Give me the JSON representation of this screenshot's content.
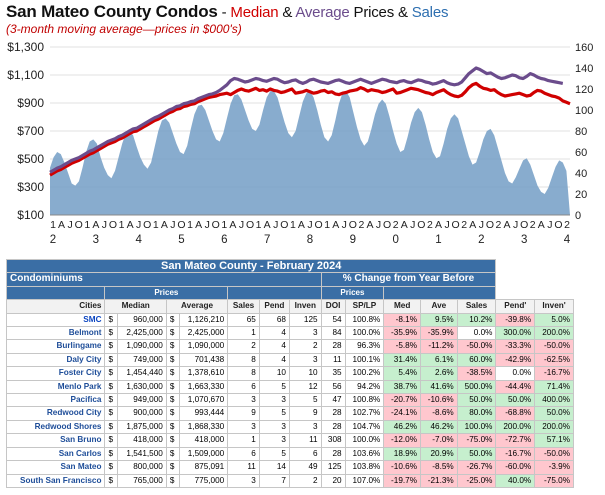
{
  "header": {
    "title_main": "San Mateo County Condos",
    "title_dash": " - ",
    "title_median": "Median",
    "title_amp1": " & ",
    "title_average": "Average",
    "title_prices": " Prices & ",
    "title_sales": "Sales",
    "subtitle": "(3-month moving average—prices in $000's)"
  },
  "colors": {
    "median": "#d00000",
    "average": "#6b4c8c",
    "sales": "#7ba3c9",
    "header_blue": "#3a6ea5",
    "positive": "#c6efce",
    "negative": "#ffc7ce"
  },
  "chart_data": {
    "type": "line",
    "y_left_ticks": [
      "$100",
      "$300",
      "$500",
      "$700",
      "$900",
      "$1,100",
      "$1,300"
    ],
    "y_left_range": [
      100,
      1300
    ],
    "y_right_ticks": [
      "0",
      "20",
      "40",
      "60",
      "80",
      "100",
      "120",
      "140",
      "160"
    ],
    "y_right_range": [
      0,
      160
    ],
    "x_month_labels": [
      "1",
      "A",
      "J",
      "O",
      "1",
      "A",
      "J",
      "O",
      "1",
      "A",
      "J",
      "O",
      "1",
      "A",
      "J",
      "O",
      "1",
      "A",
      "J",
      "O",
      "1",
      "A",
      "J",
      "O",
      "1",
      "A",
      "J",
      "O",
      "1",
      "A",
      "J",
      "O",
      "1",
      "A",
      "J",
      "O",
      "2",
      "A",
      "J",
      "O",
      "2",
      "A",
      "J",
      "O",
      "2",
      "A",
      "J",
      "O",
      "2",
      "A",
      "J",
      "O",
      "2",
      "A",
      "J",
      "O",
      "2",
      "A",
      "J",
      "O",
      "2"
    ],
    "x_year_labels": [
      "2",
      "3",
      "4",
      "5",
      "6",
      "7",
      "8",
      "9",
      "0",
      "1",
      "2",
      "3",
      "4"
    ],
    "series": [
      {
        "name": "Median",
        "color": "#d00000",
        "values": [
          385,
          400,
          415,
          425,
          440,
          455,
          470,
          480,
          490,
          505,
          520,
          535,
          545,
          560,
          575,
          590,
          605,
          615,
          625,
          640,
          650,
          665,
          680,
          695,
          700,
          715,
          730,
          745,
          760,
          775,
          785,
          800,
          815,
          830,
          840,
          855,
          860,
          875,
          880,
          890,
          895,
          910,
          920,
          930,
          940,
          945,
          950,
          960,
          965,
          970,
          960,
          975,
          990,
          1000,
          990,
          985,
          995,
          1005,
          990,
          995,
          985,
          1000,
          990,
          985,
          975,
          980,
          990,
          1000,
          970,
          975,
          980,
          990,
          980,
          970,
          975,
          985,
          990,
          975,
          980,
          965,
          960,
          970,
          975,
          985,
          990,
          995,
          1010,
          1000,
          985,
          995,
          990,
          985,
          975,
          980,
          990,
          1000,
          970,
          975,
          985,
          995,
          1005,
          1000,
          995,
          985,
          975,
          970,
          960,
          975,
          985,
          995,
          975,
          960,
          950,
          945,
          955,
          980,
          1010,
          1030,
          1040,
          1020,
          1005,
          1000,
          990,
          995,
          975,
          960,
          950,
          955,
          960,
          965,
          970,
          960,
          950,
          955,
          975,
          990,
          985,
          970,
          960,
          950,
          945,
          935,
          915,
          905,
          895
        ]
      },
      {
        "name": "Average",
        "color": "#6b4c8c",
        "values": [
          405,
          420,
          435,
          445,
          460,
          475,
          490,
          500,
          510,
          525,
          540,
          555,
          565,
          580,
          595,
          610,
          625,
          635,
          645,
          660,
          670,
          685,
          700,
          715,
          720,
          735,
          750,
          765,
          780,
          795,
          805,
          820,
          835,
          850,
          860,
          875,
          880,
          895,
          900,
          910,
          915,
          930,
          940,
          950,
          960,
          965,
          975,
          990,
          1010,
          1030,
          1060,
          1075,
          1070,
          1060,
          1050,
          1055,
          1065,
          1075,
          1070,
          1060,
          1055,
          1065,
          1075,
          1070,
          1055,
          1045,
          1050,
          1060,
          1065,
          1050,
          1040,
          1050,
          1065,
          1070,
          1060,
          1050,
          1045,
          1040,
          1050,
          1060,
          1065,
          1055,
          1045,
          1040,
          1050,
          1060,
          1070,
          1060,
          1050,
          1040,
          1050,
          1060,
          1070,
          1065,
          1055,
          1050,
          1045,
          1055,
          1060,
          1050,
          1045,
          1055,
          1065,
          1060,
          1050,
          1045,
          1035,
          1040,
          1050,
          1060,
          1045,
          1035,
          1030,
          1035,
          1050,
          1080,
          1110,
          1130,
          1150,
          1140,
          1125,
          1110,
          1115,
          1100,
          1085,
          1075,
          1080,
          1090,
          1100,
          1095,
          1080,
          1075,
          1090,
          1110,
          1100,
          1085,
          1075,
          1070,
          1060,
          1055,
          1050,
          1045,
          1040
        ]
      },
      {
        "name": "Sales",
        "color": "#7ba3c9",
        "axis": "right",
        "values": [
          45,
          55,
          60,
          58,
          50,
          40,
          30,
          28,
          32,
          45,
          60,
          70,
          72,
          68,
          55,
          45,
          38,
          35,
          42,
          55,
          68,
          78,
          80,
          76,
          65,
          55,
          48,
          44,
          50,
          65,
          80,
          90,
          92,
          88,
          78,
          68,
          60,
          58,
          66,
          82,
          96,
          104,
          105,
          100,
          90,
          80,
          72,
          70,
          78,
          92,
          106,
          114,
          115,
          110,
          100,
          90,
          82,
          80,
          86,
          100,
          112,
          118,
          118,
          112,
          100,
          88,
          78,
          74,
          80,
          94,
          108,
          116,
          118,
          112,
          100,
          86,
          74,
          70,
          76,
          90,
          106,
          116,
          118,
          112,
          98,
          84,
          72,
          66,
          70,
          82,
          96,
          106,
          110,
          106,
          94,
          80,
          68,
          60,
          62,
          74,
          88,
          98,
          102,
          98,
          86,
          72,
          60,
          54,
          56,
          68,
          82,
          92,
          96,
          92,
          80,
          68,
          56,
          48,
          50,
          60,
          72,
          80,
          82,
          76,
          64,
          52,
          40,
          32,
          30,
          36,
          44,
          52,
          54,
          48,
          38,
          28,
          22,
          20,
          26,
          36,
          46,
          52,
          50,
          42
        ]
      }
    ]
  },
  "table": {
    "title": "San Mateo County - February 2024",
    "section_left": "Condominiums",
    "section_right": "% Change from Year Before",
    "prices_left": "Prices",
    "prices_right": "Prices",
    "headers": [
      "Cities",
      "Median",
      "Average",
      "Sales",
      "Pend",
      "Inven",
      "DOI",
      "SP/LP",
      "Med",
      "Ave",
      "Sales",
      "Pend'",
      "Inven'"
    ],
    "dollar": "$",
    "rows": [
      {
        "city": "SMC",
        "median": "960,000",
        "average": "1,126,210",
        "sales": "65",
        "pend": "68",
        "inven": "125",
        "doi": "54",
        "splp": "100.8%",
        "med": "-8.1%",
        "ave": "9.5%",
        "sales_c": "10.2%",
        "pend_c": "-39.8%",
        "inven_c": "5.0%",
        "cls": [
          "neg",
          "pos",
          "pos",
          "neg",
          "pos"
        ]
      },
      {
        "city": "Belmont",
        "median": "2,425,000",
        "average": "2,425,000",
        "sales": "1",
        "pend": "4",
        "inven": "3",
        "doi": "84",
        "splp": "100.0%",
        "med": "-35.9%",
        "ave": "-35.9%",
        "sales_c": "0.0%",
        "pend_c": "300.0%",
        "inven_c": "200.0%",
        "cls": [
          "neg",
          "neg",
          "neu",
          "pos",
          "pos"
        ]
      },
      {
        "city": "Burlingame",
        "median": "1,090,000",
        "average": "1,090,000",
        "sales": "2",
        "pend": "4",
        "inven": "2",
        "doi": "28",
        "splp": "96.3%",
        "med": "-5.8%",
        "ave": "-11.2%",
        "sales_c": "-50.0%",
        "pend_c": "-33.3%",
        "inven_c": "-50.0%",
        "cls": [
          "neg",
          "neg",
          "neg",
          "neg",
          "neg"
        ]
      },
      {
        "city": "Daly City",
        "median": "749,000",
        "average": "701,438",
        "sales": "8",
        "pend": "4",
        "inven": "3",
        "doi": "11",
        "splp": "100.1%",
        "med": "31.4%",
        "ave": "6.1%",
        "sales_c": "60.0%",
        "pend_c": "-42.9%",
        "inven_c": "-62.5%",
        "cls": [
          "pos",
          "pos",
          "pos",
          "neg",
          "neg"
        ]
      },
      {
        "city": "Foster City",
        "median": "1,454,440",
        "average": "1,378,610",
        "sales": "8",
        "pend": "10",
        "inven": "10",
        "doi": "35",
        "splp": "100.2%",
        "med": "5.4%",
        "ave": "2.6%",
        "sales_c": "-38.5%",
        "pend_c": "0.0%",
        "inven_c": "-16.7%",
        "cls": [
          "pos",
          "pos",
          "neg",
          "neu",
          "neg"
        ]
      },
      {
        "city": "Menlo Park",
        "median": "1,630,000",
        "average": "1,663,330",
        "sales": "6",
        "pend": "5",
        "inven": "12",
        "doi": "56",
        "splp": "94.2%",
        "med": "38.7%",
        "ave": "41.6%",
        "sales_c": "500.0%",
        "pend_c": "-44.4%",
        "inven_c": "71.4%",
        "cls": [
          "pos",
          "pos",
          "pos",
          "neg",
          "pos"
        ]
      },
      {
        "city": "Pacifica",
        "median": "949,000",
        "average": "1,070,670",
        "sales": "3",
        "pend": "3",
        "inven": "5",
        "doi": "47",
        "splp": "100.8%",
        "med": "-20.7%",
        "ave": "-10.6%",
        "sales_c": "50.0%",
        "pend_c": "50.0%",
        "inven_c": "400.0%",
        "cls": [
          "neg",
          "neg",
          "pos",
          "pos",
          "pos"
        ]
      },
      {
        "city": "Redwood City",
        "median": "900,000",
        "average": "993,444",
        "sales": "9",
        "pend": "5",
        "inven": "9",
        "doi": "28",
        "splp": "102.7%",
        "med": "-24.1%",
        "ave": "-8.6%",
        "sales_c": "80.0%",
        "pend_c": "-68.8%",
        "inven_c": "50.0%",
        "cls": [
          "neg",
          "neg",
          "pos",
          "neg",
          "pos"
        ]
      },
      {
        "city": "Redwood Shores",
        "median": "1,875,000",
        "average": "1,868,330",
        "sales": "3",
        "pend": "3",
        "inven": "3",
        "doi": "28",
        "splp": "104.7%",
        "med": "46.2%",
        "ave": "46.2%",
        "sales_c": "100.0%",
        "pend_c": "200.0%",
        "inven_c": "200.0%",
        "cls": [
          "pos",
          "pos",
          "pos",
          "pos",
          "pos"
        ]
      },
      {
        "city": "San Bruno",
        "median": "418,000",
        "average": "418,000",
        "sales": "1",
        "pend": "3",
        "inven": "11",
        "doi": "308",
        "splp": "100.0%",
        "med": "-12.0%",
        "ave": "-7.0%",
        "sales_c": "-75.0%",
        "pend_c": "-72.7%",
        "inven_c": "57.1%",
        "cls": [
          "neg",
          "neg",
          "neg",
          "neg",
          "pos"
        ]
      },
      {
        "city": "San Carlos",
        "median": "1,541,500",
        "average": "1,509,000",
        "sales": "6",
        "pend": "5",
        "inven": "6",
        "doi": "28",
        "splp": "103.6%",
        "med": "18.9%",
        "ave": "20.9%",
        "sales_c": "50.0%",
        "pend_c": "-16.7%",
        "inven_c": "-50.0%",
        "cls": [
          "pos",
          "pos",
          "pos",
          "neg",
          "neg"
        ]
      },
      {
        "city": "San Mateo",
        "median": "800,000",
        "average": "875,091",
        "sales": "11",
        "pend": "14",
        "inven": "49",
        "doi": "125",
        "splp": "103.8%",
        "med": "-10.6%",
        "ave": "-8.5%",
        "sales_c": "-26.7%",
        "pend_c": "-60.0%",
        "inven_c": "-3.9%",
        "cls": [
          "neg",
          "neg",
          "neg",
          "neg",
          "neg"
        ]
      },
      {
        "city": "South San Francisco",
        "median": "765,000",
        "average": "775,000",
        "sales": "3",
        "pend": "7",
        "inven": "2",
        "doi": "20",
        "splp": "107.0%",
        "med": "-19.7%",
        "ave": "-21.3%",
        "sales_c": "-25.0%",
        "pend_c": "40.0%",
        "inven_c": "-75.0%",
        "cls": [
          "neg",
          "neg",
          "neg",
          "pos",
          "neg"
        ]
      }
    ]
  }
}
